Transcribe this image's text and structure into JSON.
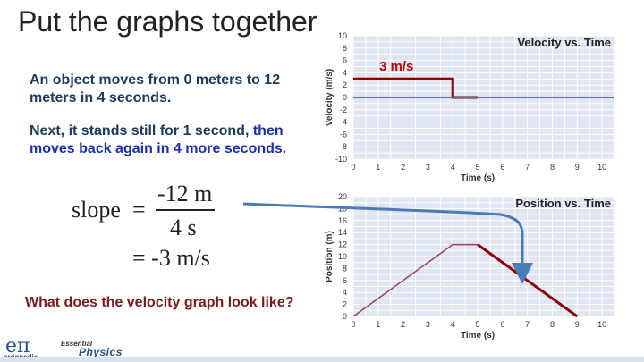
{
  "slide": {
    "title": "Put the graphs together",
    "paragraph1": "An object moves from 0 meters to 12 meters in 4 seconds.",
    "paragraph2_black": "Next, it stands still for 1 second,",
    "paragraph2_blue": "then moves back again in 4 more seconds.",
    "slope_word": "slope",
    "equals1": "=",
    "numerator": "-12 m",
    "denominator": "4 s",
    "result": "= -3 m/s",
    "question": "What does the velocity graph look like?",
    "annotation_velocity": "3 m/s"
  },
  "logo": {
    "mark": "eπ",
    "sub": "ergopedia",
    "essential": "Essential",
    "physics": "Physics"
  },
  "colors": {
    "plot_bg": "#dfe6f2",
    "grid": "#ffffff",
    "axis_line": "#5a6fa0",
    "data_dark_red": "#8b0000",
    "data_pink": "#a0405a",
    "arrow_blue": "#4a7bb7",
    "annotation_red": "#c00000"
  },
  "chart_data": [
    {
      "type": "line",
      "title": "Velocity vs. Time",
      "xlabel": "Time (s)",
      "ylabel": "Velocity (m/s)",
      "xlim": [
        0,
        10.5
      ],
      "ylim": [
        -10,
        10
      ],
      "x_ticks": [
        "0",
        "1",
        "2",
        "3",
        "4",
        "5",
        "6",
        "7",
        "8",
        "9",
        "10"
      ],
      "y_ticks": [
        "10",
        "8",
        "6",
        "4",
        "2",
        "0",
        "-2",
        "-4",
        "-6",
        "-8",
        "-10"
      ],
      "grid": true,
      "series": [
        {
          "x": [
            0,
            4,
            4,
            5
          ],
          "y": [
            3,
            3,
            0,
            0
          ]
        },
        {
          "x": [
            0,
            10.5
          ],
          "y": [
            0,
            0
          ]
        }
      ]
    },
    {
      "type": "line",
      "title": "Position vs. Time",
      "xlabel": "Time (s)",
      "ylabel": "Position (m)",
      "xlim": [
        0,
        10.5
      ],
      "ylim": [
        0,
        20
      ],
      "x_ticks": [
        "0",
        "1",
        "2",
        "3",
        "4",
        "5",
        "6",
        "7",
        "8",
        "9",
        "10"
      ],
      "y_ticks": [
        "20",
        "18",
        "16",
        "14",
        "12",
        "10",
        "8",
        "6",
        "4",
        "2",
        "0"
      ],
      "grid": true,
      "series": [
        {
          "x": [
            0,
            4,
            5
          ],
          "y": [
            0,
            12,
            12
          ]
        },
        {
          "x": [
            5,
            9
          ],
          "y": [
            12,
            0
          ]
        }
      ]
    }
  ]
}
